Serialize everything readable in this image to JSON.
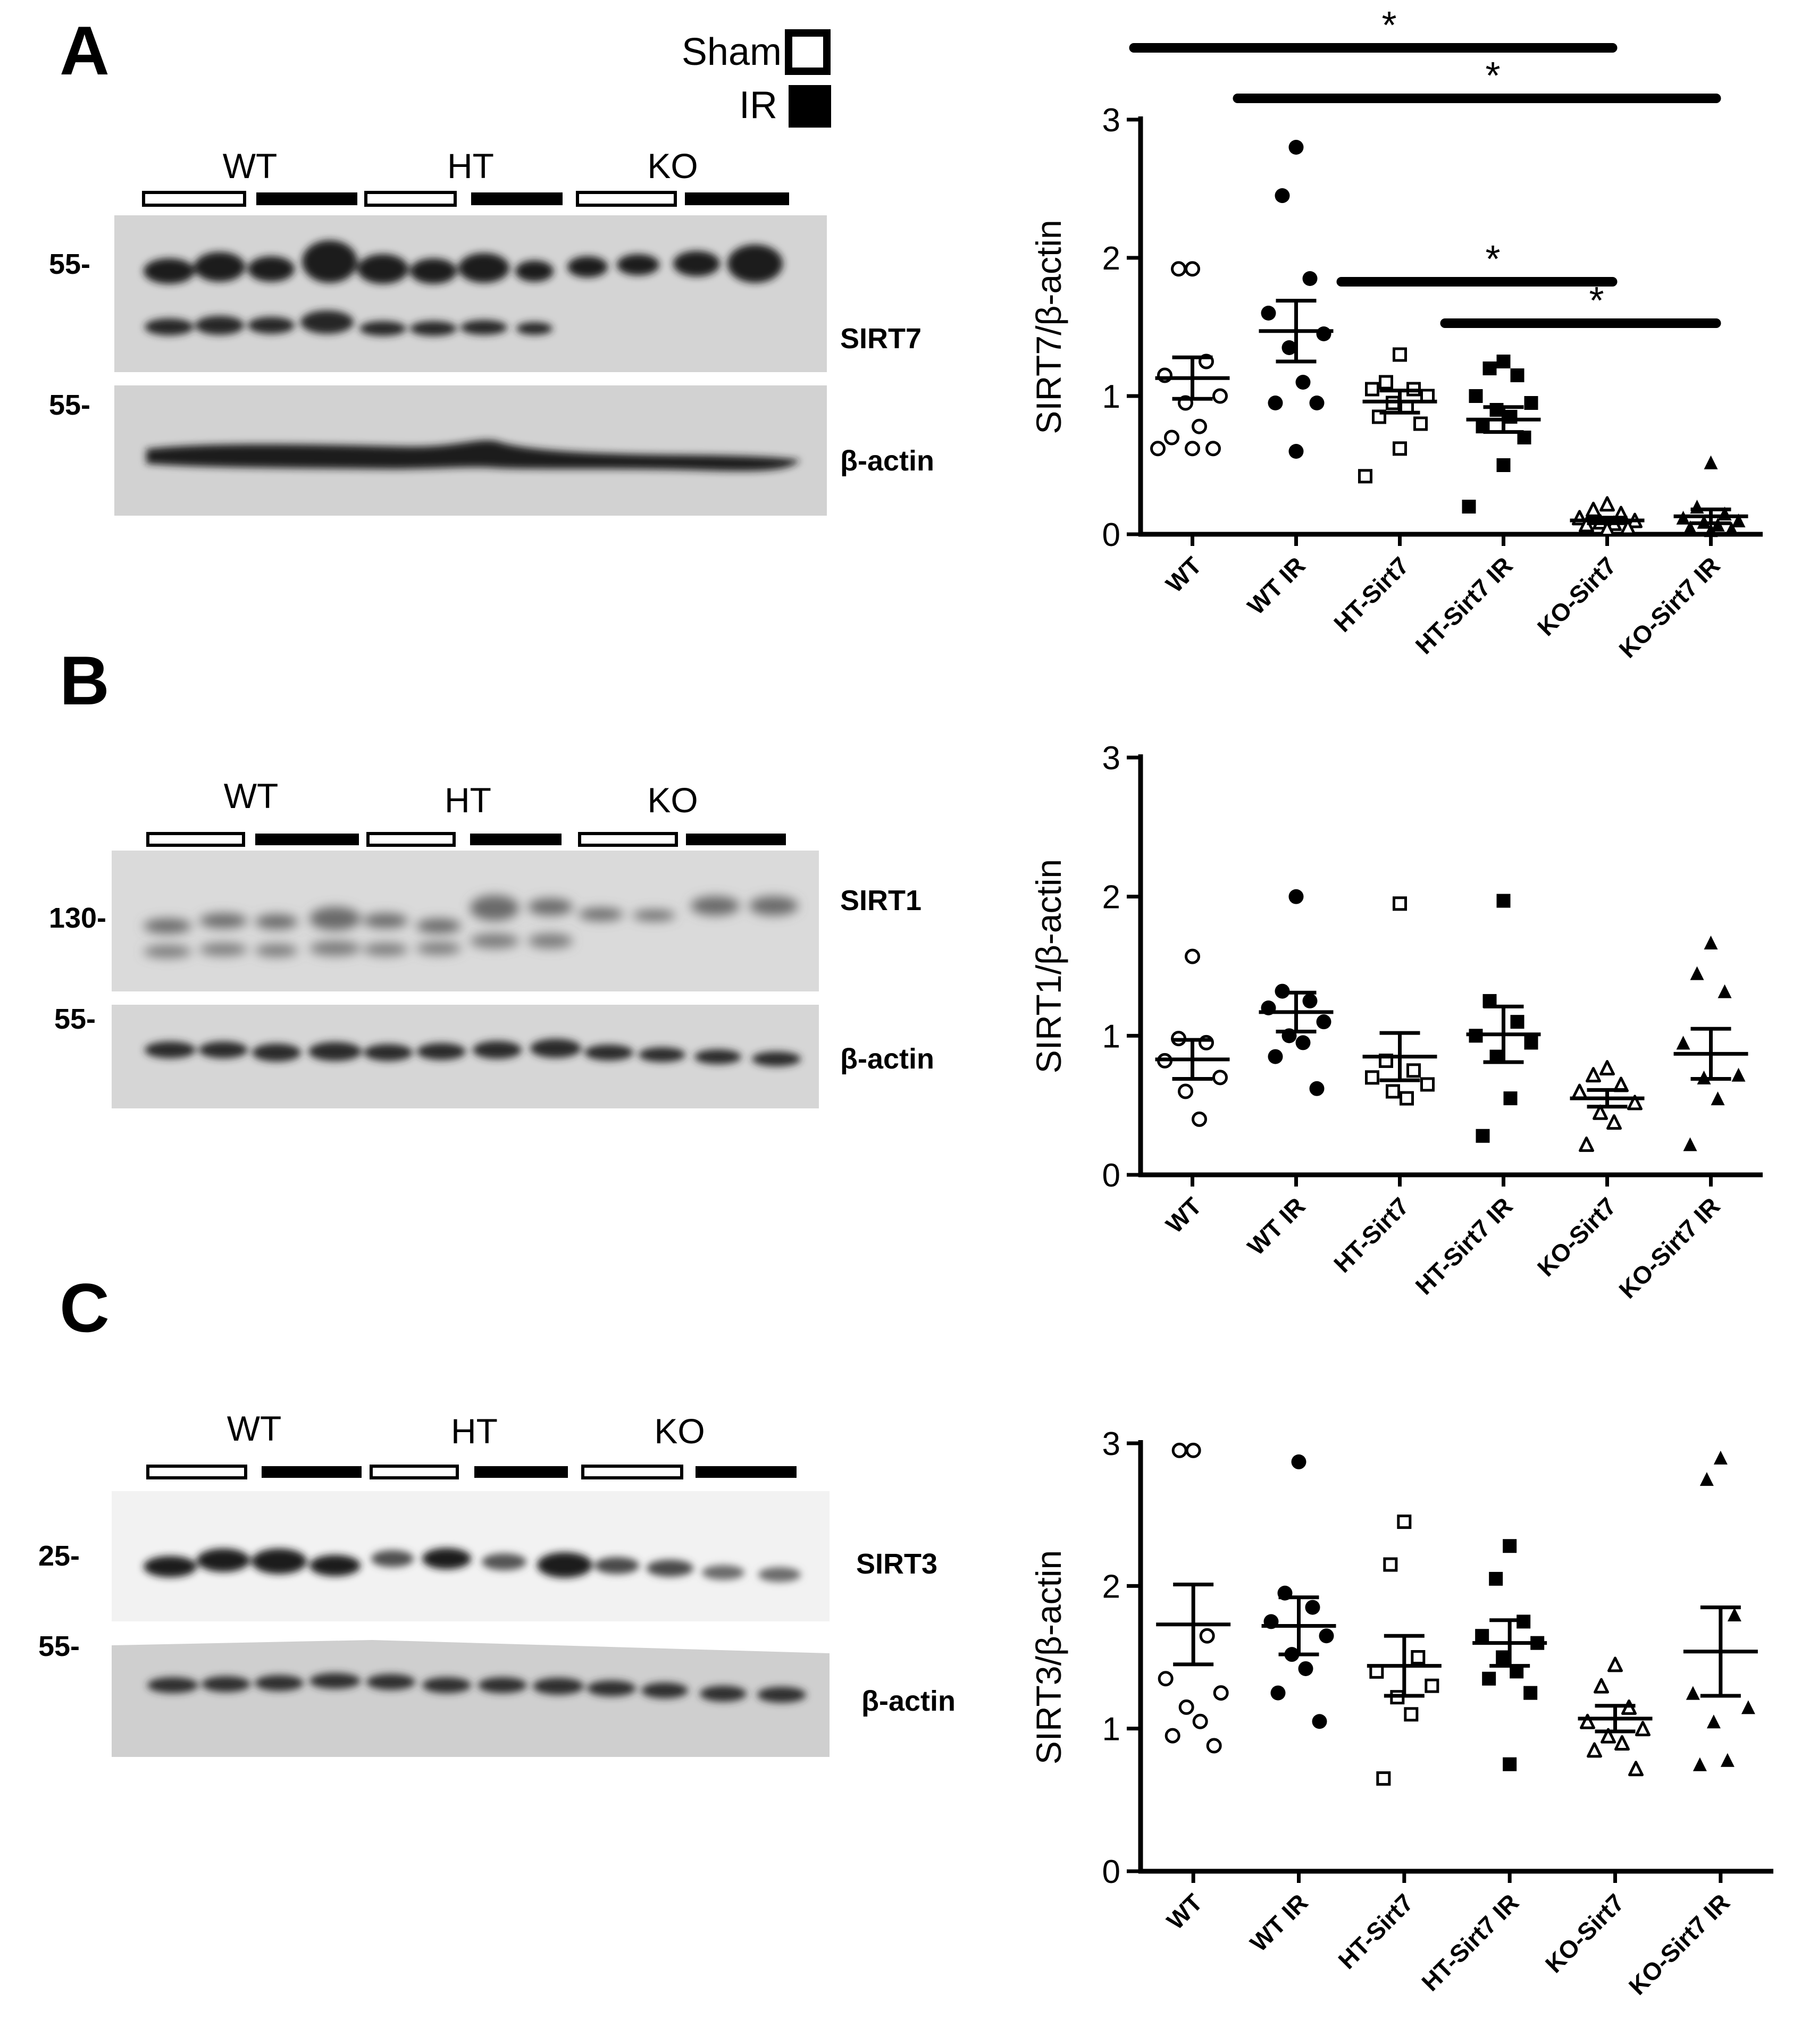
{
  "legend": {
    "sham": "Sham",
    "ir": "IR"
  },
  "colors": {
    "ink": "#000000",
    "background": "#ffffff",
    "blot_light": "#d8d8d8",
    "blot_band": "#1a1a1a"
  },
  "group_order": [
    "WT",
    "WT IR",
    "HT-Sirt7",
    "HT-Sirt7 IR",
    "KO-Sirt7",
    "KO-Sirt7 IR"
  ],
  "group_markers": {
    "WT": "circle-open",
    "WT IR": "circle-filled",
    "HT-Sirt7": "square-open",
    "HT-Sirt7 IR": "square-filled",
    "KO-Sirt7": "triangle-open",
    "KO-Sirt7 IR": "triangle-filled"
  },
  "panels": [
    {
      "letter": "A",
      "genotypes": [
        "WT",
        "HT",
        "KO"
      ],
      "blots": [
        {
          "target": "SIRT7",
          "marker": "55-"
        },
        {
          "target": "β-actin",
          "marker": "55-"
        }
      ]
    },
    {
      "letter": "B",
      "genotypes": [
        "WT",
        "HT",
        "KO"
      ],
      "blots": [
        {
          "target": "SIRT1",
          "marker": "130-"
        },
        {
          "target": "β-actin",
          "marker": "55-"
        }
      ]
    },
    {
      "letter": "C",
      "genotypes": [
        "WT",
        "HT",
        "KO"
      ],
      "blots": [
        {
          "target": "SIRT3",
          "marker": "25-"
        },
        {
          "target": "β-actin",
          "marker": "55-"
        }
      ]
    }
  ],
  "chart_data": [
    {
      "type": "scatter",
      "panel": "A",
      "title": "",
      "xlabel": "",
      "ylabel": "SIRT7/β-actin",
      "categories": [
        "WT",
        "WT IR",
        "HT-Sirt7",
        "HT-Sirt7 IR",
        "KO-Sirt7",
        "KO-Sirt7 IR"
      ],
      "ylim": [
        0,
        3
      ],
      "yticks": [
        0,
        1,
        2,
        3
      ],
      "points": [
        [
          1.92,
          1.92,
          1.25,
          1.15,
          1.0,
          0.95,
          0.78,
          0.7,
          0.62,
          0.62,
          0.62
        ],
        [
          2.8,
          2.45,
          1.85,
          1.6,
          1.45,
          1.35,
          1.1,
          0.95,
          0.95,
          0.6
        ],
        [
          1.3,
          1.1,
          1.05,
          1.05,
          1.0,
          0.95,
          0.92,
          0.85,
          0.8,
          0.62,
          0.42
        ],
        [
          1.25,
          1.2,
          1.15,
          1.0,
          0.95,
          0.9,
          0.85,
          0.78,
          0.7,
          0.5,
          0.2
        ],
        [
          0.22,
          0.18,
          0.15,
          0.12,
          0.1,
          0.09,
          0.08,
          0.07,
          0.05,
          0.04
        ],
        [
          0.52,
          0.2,
          0.15,
          0.12,
          0.1,
          0.09,
          0.07,
          0.05,
          0.04,
          0.03
        ]
      ],
      "mean": [
        1.13,
        1.47,
        0.96,
        0.83,
        0.1,
        0.13
      ],
      "sem": [
        0.15,
        0.22,
        0.08,
        0.09,
        0.02,
        0.05
      ],
      "significance": [
        {
          "from": "WT",
          "to": "KO-Sirt7",
          "label": "*"
        },
        {
          "from": "WT IR",
          "to": "KO-Sirt7 IR",
          "label": "*"
        },
        {
          "from": "HT-Sirt7",
          "to": "KO-Sirt7",
          "label": "*"
        },
        {
          "from": "HT-Sirt7 IR",
          "to": "KO-Sirt7 IR",
          "label": "*"
        }
      ]
    },
    {
      "type": "scatter",
      "panel": "B",
      "title": "",
      "xlabel": "",
      "ylabel": "SIRT1/β-actin",
      "categories": [
        "WT",
        "WT IR",
        "HT-Sirt7",
        "HT-Sirt7 IR",
        "KO-Sirt7",
        "KO-Sirt7 IR"
      ],
      "ylim": [
        0,
        3
      ],
      "yticks": [
        0,
        1,
        2,
        3
      ],
      "points": [
        [
          1.57,
          0.98,
          0.95,
          0.82,
          0.7,
          0.6,
          0.4
        ],
        [
          2.0,
          1.32,
          1.25,
          1.2,
          1.1,
          1.0,
          0.95,
          0.85,
          0.62
        ],
        [
          1.95,
          0.82,
          0.75,
          0.7,
          0.65,
          0.6,
          0.55
        ],
        [
          1.97,
          1.25,
          1.1,
          1.0,
          0.95,
          0.85,
          0.55,
          0.28
        ],
        [
          0.77,
          0.72,
          0.65,
          0.6,
          0.52,
          0.45,
          0.38,
          0.22
        ],
        [
          1.67,
          1.45,
          1.32,
          0.95,
          0.72,
          0.7,
          0.55,
          0.22
        ]
      ],
      "mean": [
        0.83,
        1.17,
        0.85,
        1.01,
        0.55,
        0.87
      ],
      "sem": [
        0.14,
        0.14,
        0.17,
        0.2,
        0.06,
        0.18
      ],
      "significance": []
    },
    {
      "type": "scatter",
      "panel": "C",
      "title": "",
      "xlabel": "",
      "ylabel": "SIRT3/β-actin",
      "categories": [
        "WT",
        "WT IR",
        "HT-Sirt7",
        "HT-Sirt7 IR",
        "KO-Sirt7",
        "KO-Sirt7 IR"
      ],
      "ylim": [
        0,
        3
      ],
      "yticks": [
        0,
        1,
        2,
        3
      ],
      "points": [
        [
          2.95,
          2.95,
          1.65,
          1.35,
          1.25,
          1.15,
          1.05,
          0.95,
          0.88
        ],
        [
          2.87,
          1.95,
          1.85,
          1.75,
          1.65,
          1.52,
          1.42,
          1.25,
          1.05
        ],
        [
          2.45,
          2.15,
          1.5,
          1.4,
          1.3,
          1.22,
          1.1,
          0.65
        ],
        [
          2.28,
          2.05,
          1.75,
          1.65,
          1.6,
          1.5,
          1.4,
          1.35,
          1.25,
          0.75
        ],
        [
          1.45,
          1.3,
          1.15,
          1.05,
          1.0,
          0.95,
          0.9,
          0.85,
          0.72
        ],
        [
          2.9,
          2.75,
          1.8,
          1.25,
          1.15,
          1.05,
          0.78,
          0.75
        ]
      ],
      "mean": [
        1.73,
        1.72,
        1.44,
        1.6,
        1.07,
        1.54
      ],
      "sem": [
        0.28,
        0.2,
        0.21,
        0.16,
        0.09,
        0.31
      ],
      "significance": []
    }
  ]
}
